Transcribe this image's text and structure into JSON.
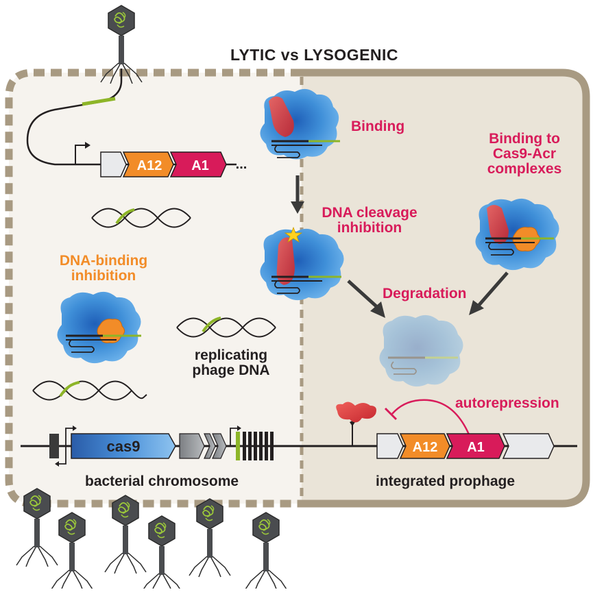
{
  "title": "LYTIC vs LYSOGENIC",
  "labels": {
    "binding": "Binding",
    "binding_to_complexes": [
      "Binding to",
      "Cas9-Acr",
      "complexes"
    ],
    "dna_cleavage_inhibition": [
      "DNA cleavage",
      "inhibition"
    ],
    "dna_binding_inhibition": [
      "DNA-binding",
      "inhibition"
    ],
    "degradation": "Degradation",
    "replicating_phage_dna": [
      "replicating",
      "phage DNA"
    ],
    "autorepression": "autorepression",
    "bacterial_chromosome": "bacterial chromosome",
    "integrated_prophage": "integrated prophage"
  },
  "genes": {
    "phage_a12": "A12",
    "phage_a1": "A1",
    "prophage_a12": "A12",
    "prophage_a1": "A1",
    "cas9": "cas9",
    "ellipsis": "..."
  },
  "colors": {
    "pink": "#d81b5a",
    "orange": "#f28c28",
    "cell_border": "#a89a82",
    "lysogenic_fill": "#eae4d8",
    "lytic_fill": "#f6f3ee",
    "cas9_blue": "#3f8fd8",
    "guide_green": "#8db528"
  }
}
